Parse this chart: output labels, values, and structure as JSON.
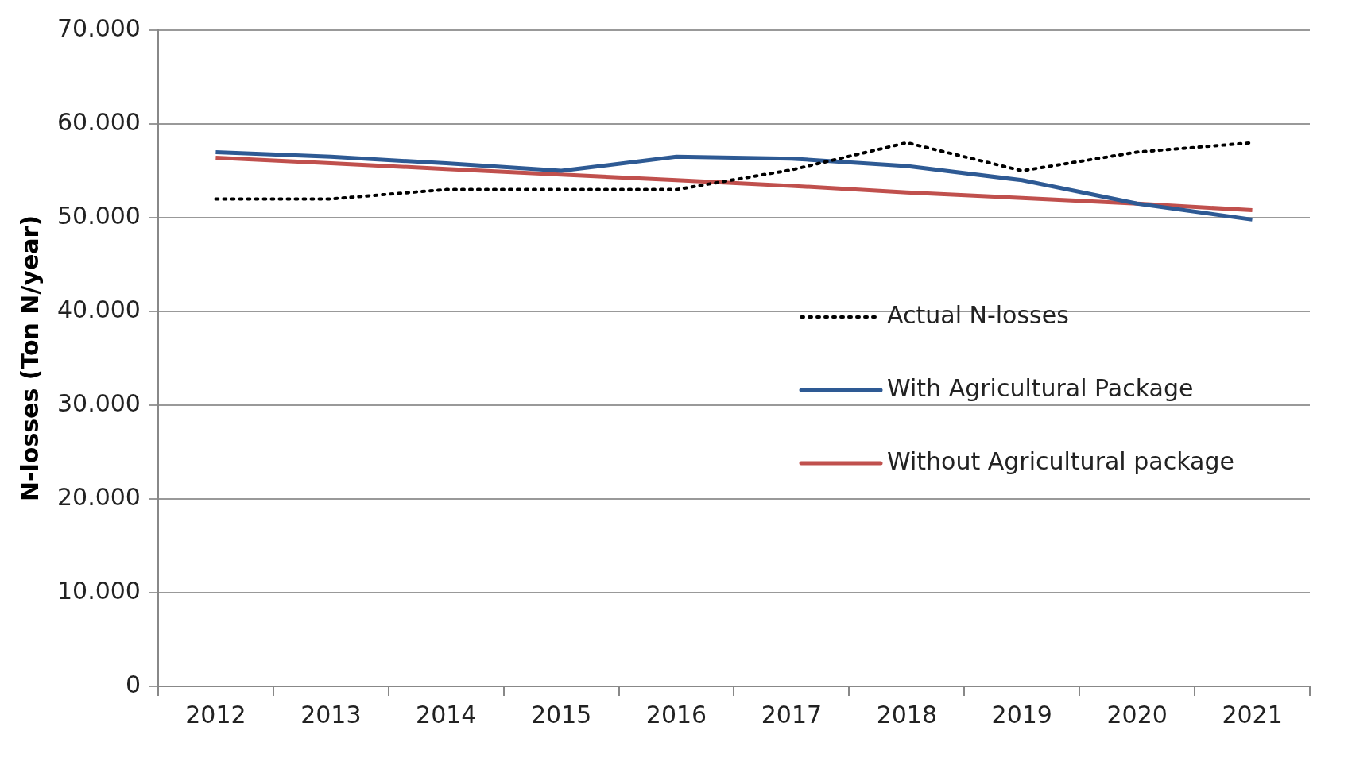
{
  "chart_data": {
    "type": "line",
    "ylabel": "N-losses (Ton N/year)",
    "categories": [
      "2012",
      "2013",
      "2014",
      "2015",
      "2016",
      "2017",
      "2018",
      "2019",
      "2020",
      "2021"
    ],
    "series": [
      {
        "name": "Actual N-losses",
        "color": "#000000",
        "line_style": "dotted",
        "values": [
          52000,
          52000,
          53000,
          53000,
          53000,
          55100,
          58000,
          55000,
          57000,
          58000
        ]
      },
      {
        "name": "With Agricultural Package",
        "color": "#2e5a94",
        "line_style": "solid",
        "values": [
          57000,
          56500,
          55800,
          55000,
          56500,
          56300,
          55500,
          54000,
          51500,
          49800
        ]
      },
      {
        "name": "Without Agricultural package",
        "color": "#c0504d",
        "line_style": "solid",
        "values": [
          56400,
          55800,
          55200,
          54600,
          54000,
          53400,
          52700,
          52100,
          51500,
          50800
        ]
      }
    ],
    "ylim": [
      0,
      70000
    ],
    "yticks": [
      0,
      {
        "value": 10000,
        "label": "10.000"
      },
      {
        "value": 20000,
        "label": "20.000"
      },
      {
        "value": 30000,
        "label": "30.000"
      },
      {
        "value": 40000,
        "label": "40.000"
      },
      {
        "value": 50000,
        "label": "50.000"
      },
      {
        "value": 60000,
        "label": "60.000"
      },
      {
        "value": 70000,
        "label": "70.000"
      }
    ],
    "grid": "y",
    "legend": "right",
    "marker": "none"
  }
}
